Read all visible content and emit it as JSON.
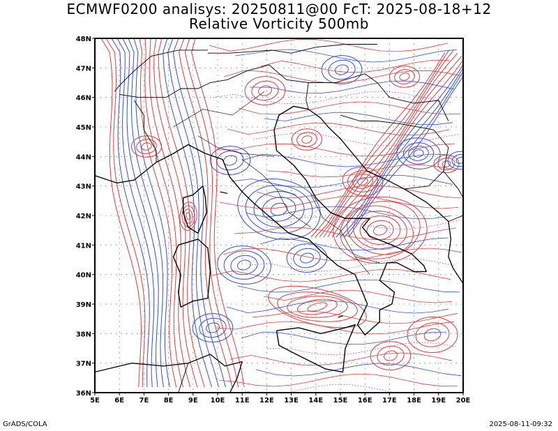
{
  "title_line1": "ECMWF0200 analisys: 20250811@00 FcT: 2025-08-18+12",
  "title_line2": "Relative Vorticity 500mb",
  "footer_left": "GrADS/COLA",
  "footer_right": "2025-08-11-09:32",
  "map": {
    "lon_range": [
      5,
      20
    ],
    "lat_range": [
      36,
      48
    ],
    "lon_labels": [
      "5E",
      "6E",
      "7E",
      "8E",
      "9E",
      "10E",
      "11E",
      "12E",
      "13E",
      "14E",
      "15E",
      "16E",
      "17E",
      "18E",
      "19E",
      "20E"
    ],
    "lat_labels": [
      "36N",
      "37N",
      "38N",
      "39N",
      "40N",
      "41N",
      "42N",
      "43N",
      "44N",
      "45N",
      "46N",
      "47N",
      "48N"
    ],
    "grid": "dotted",
    "colors": {
      "positive": "#e33b3b",
      "negative": "#2f4fe0",
      "zero": "#c060c0",
      "coastline": "#000000",
      "border": "#000000"
    }
  }
}
